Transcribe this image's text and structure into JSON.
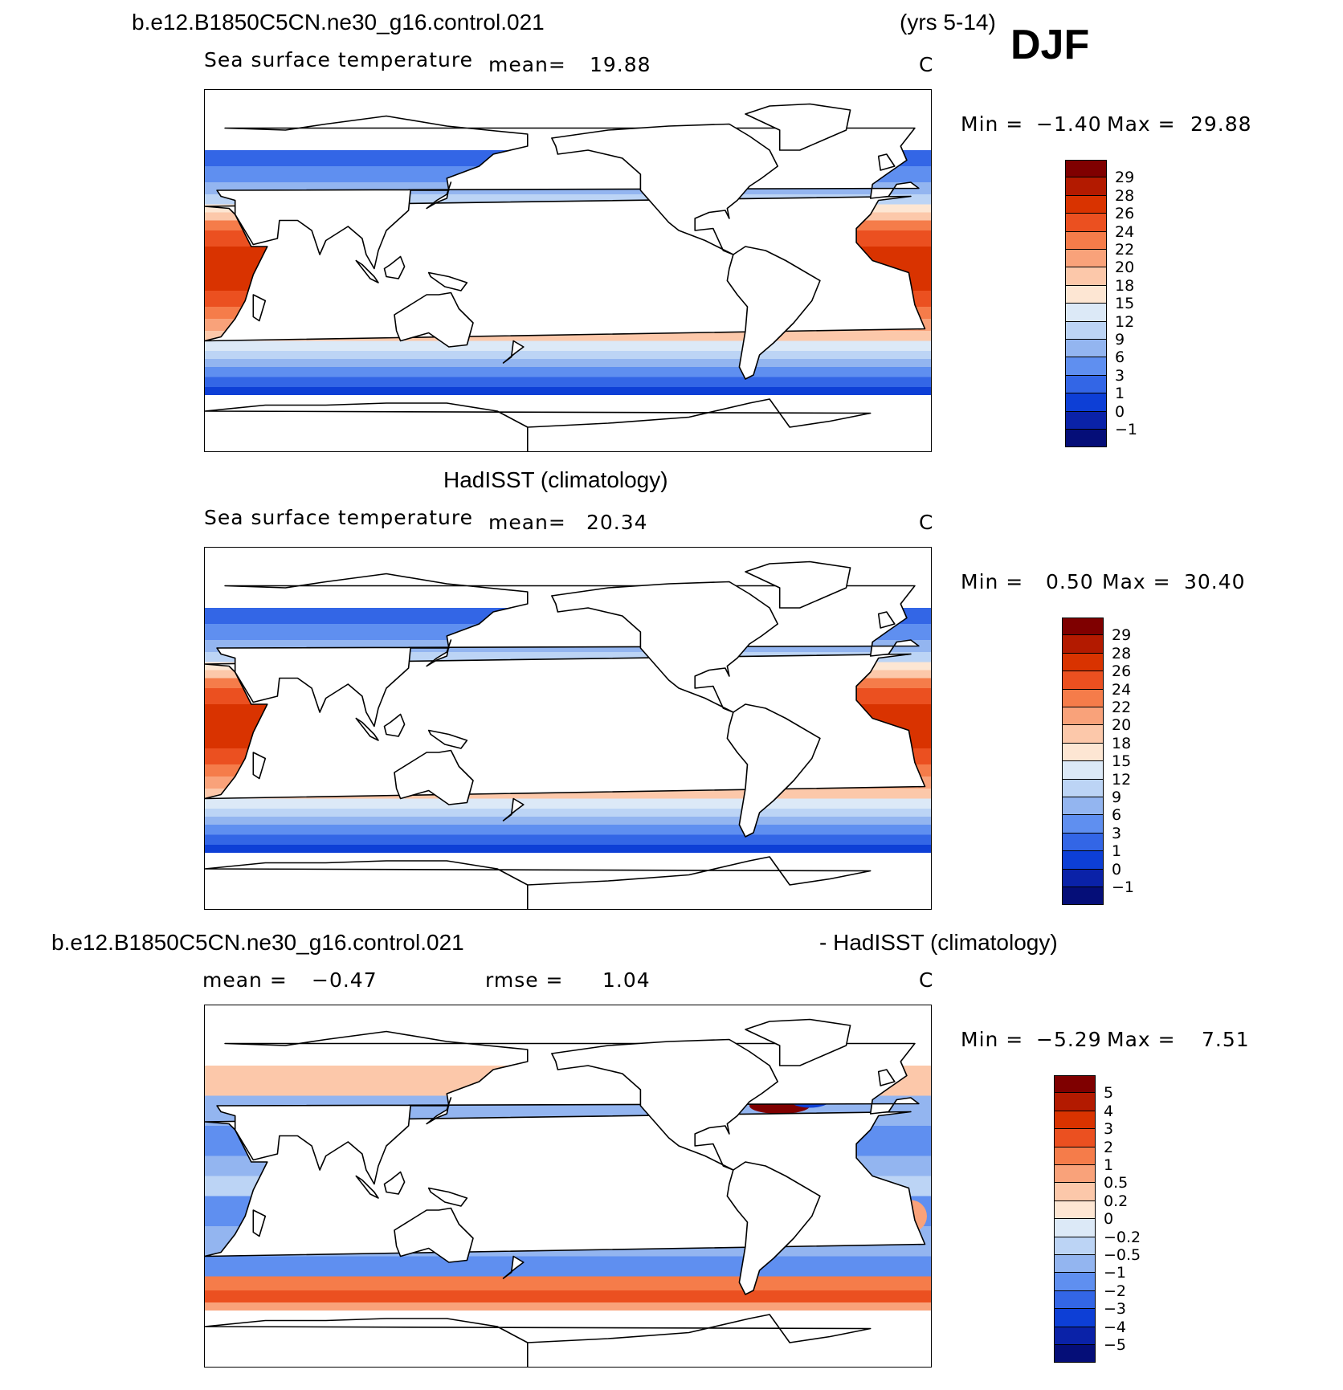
{
  "header": {
    "case_name": "b.e12.B1850C5CN.ne30_g16.control.021",
    "years": "(yrs 5-14)",
    "season": "DJF"
  },
  "panels": [
    {
      "id": "model",
      "title": "",
      "variable": "Sea surface temperature",
      "stat_label": "mean=",
      "stat_value": "19.88",
      "units": "C",
      "min_label": "Min =",
      "min_value": "−1.40",
      "max_label": "Max =",
      "max_value": "29.88",
      "colorbar_ticks": [
        "29",
        "28",
        "26",
        "24",
        "22",
        "20",
        "18",
        "15",
        "12",
        "9",
        "6",
        "3",
        "1",
        "0",
        "−1"
      ],
      "colorbar_colors": [
        "#7f0000",
        "#b31a00",
        "#d93300",
        "#eb5020",
        "#f57c4a",
        "#f9a27a",
        "#fcc8aa",
        "#fde6d3",
        "#dce9f7",
        "#bcd4f5",
        "#93b5f0",
        "#5f8ff0",
        "#3366e6",
        "#0d3fd6",
        "#0a22a8",
        "#050e78"
      ],
      "map_style": "abs"
    },
    {
      "id": "obs",
      "title": "HadISST (climatology)",
      "variable": "Sea surface temperature",
      "stat_label": "mean=",
      "stat_value": "20.34",
      "units": "C",
      "min_label": "Min =",
      "min_value": "0.50",
      "max_label": "Max =",
      "max_value": "30.40",
      "colorbar_ticks": [
        "29",
        "28",
        "26",
        "24",
        "22",
        "20",
        "18",
        "15",
        "12",
        "9",
        "6",
        "3",
        "1",
        "0",
        "−1"
      ],
      "colorbar_colors": [
        "#7f0000",
        "#b31a00",
        "#d93300",
        "#eb5020",
        "#f57c4a",
        "#f9a27a",
        "#fcc8aa",
        "#fde6d3",
        "#dce9f7",
        "#bcd4f5",
        "#93b5f0",
        "#5f8ff0",
        "#3366e6",
        "#0d3fd6",
        "#0a22a8",
        "#050e78"
      ],
      "map_style": "abs"
    },
    {
      "id": "diff",
      "title_left": "b.e12.B1850C5CN.ne30_g16.control.021",
      "title_right": "- HadISST (climatology)",
      "stat_label": "mean =",
      "stat_value": "−0.47",
      "rmse_label": "rmse =",
      "rmse_value": "1.04",
      "units": "C",
      "min_label": "Min =",
      "min_value": "−5.29",
      "max_label": "Max =",
      "max_value": "7.51",
      "colorbar_ticks": [
        "5",
        "4",
        "3",
        "2",
        "1",
        "0.5",
        "0.2",
        "0",
        "−0.2",
        "−0.5",
        "−1",
        "−2",
        "−3",
        "−4",
        "−5"
      ],
      "colorbar_colors": [
        "#7f0000",
        "#b31a00",
        "#d93300",
        "#eb5020",
        "#f57c4a",
        "#f9a27a",
        "#fcc8aa",
        "#fde6d3",
        "#dce9f7",
        "#bcd4f5",
        "#93b5f0",
        "#5f8ff0",
        "#3366e6",
        "#0d3fd6",
        "#0a22a8",
        "#050e78"
      ],
      "map_style": "diff"
    }
  ]
}
